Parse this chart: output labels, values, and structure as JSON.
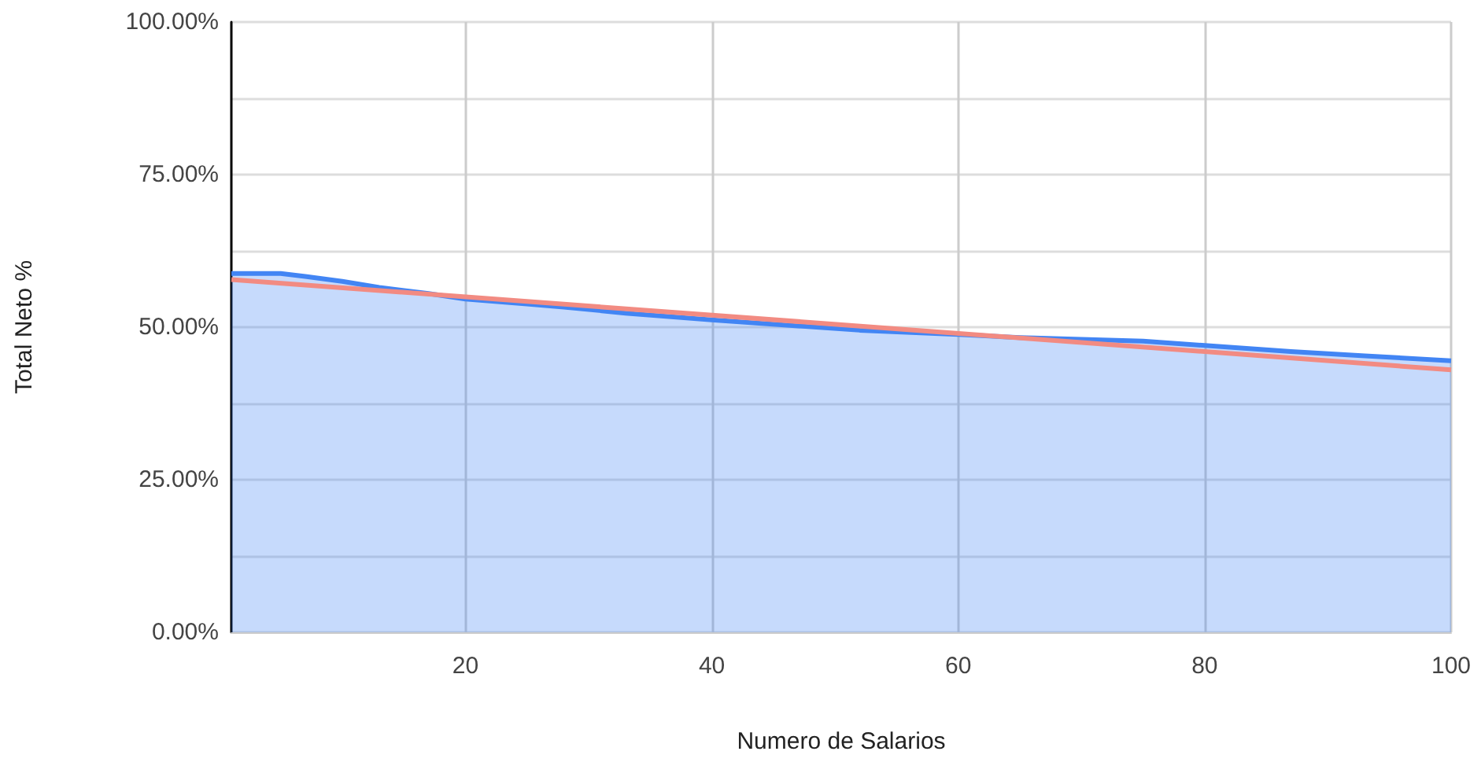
{
  "chart_data": {
    "type": "area",
    "xlabel": "Numero de Salarios",
    "ylabel": "Total Neto %",
    "xlim": [
      1,
      100
    ],
    "xticks": [
      20,
      40,
      60,
      80,
      100
    ],
    "ylim": [
      0,
      100
    ],
    "yticks": [
      {
        "value": 0,
        "label": "0.00%"
      },
      {
        "value": 12.5,
        "label": null
      },
      {
        "value": 25,
        "label": "25.00%"
      },
      {
        "value": 37.5,
        "label": null
      },
      {
        "value": 50,
        "label": "50.00%"
      },
      {
        "value": 62.5,
        "label": null
      },
      {
        "value": 75,
        "label": "75.00%"
      },
      {
        "value": 87.5,
        "label": null
      },
      {
        "value": 100,
        "label": "100.00%"
      }
    ],
    "grid": true,
    "marker": "none",
    "series": [
      {
        "color": "#4285f4",
        "x": [
          1,
          5,
          7,
          10,
          13,
          17,
          20,
          25,
          28,
          33,
          40,
          47,
          52,
          60,
          65,
          70,
          75,
          80,
          87,
          93,
          100
        ],
        "values": [
          58.8,
          58.8,
          58.3,
          57.5,
          56.5,
          55.5,
          54.6,
          53.8,
          53.3,
          52.3,
          51.2,
          50.2,
          49.5,
          48.8,
          48.3,
          48.0,
          47.7,
          47.0,
          46.0,
          45.3,
          44.5
        ]
      },
      {
        "type": "line",
        "color": "#f28b82",
        "x": [
          1,
          100
        ],
        "values": [
          57.8,
          43.0
        ]
      }
    ]
  }
}
